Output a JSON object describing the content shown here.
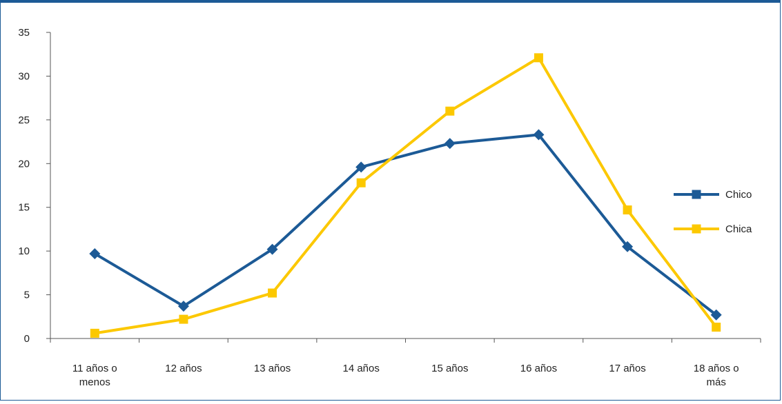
{
  "chart_data": {
    "type": "line",
    "title": "",
    "xlabel": "",
    "ylabel": "",
    "categories": [
      [
        "11 años o",
        "menos"
      ],
      [
        "12 años"
      ],
      [
        "13 años"
      ],
      [
        "14 años"
      ],
      [
        "15 años"
      ],
      [
        "16 años"
      ],
      [
        "17 años"
      ],
      [
        "18 años o",
        "más"
      ]
    ],
    "ylim": [
      0,
      35
    ],
    "yticks": [
      "0",
      "5",
      "10",
      "15",
      "20",
      "25",
      "30",
      "35"
    ],
    "grid": false,
    "legend_position": "right",
    "series": [
      {
        "name": "Chico",
        "color": "#1c5a96",
        "marker": "diamond",
        "values": [
          9.7,
          3.7,
          10.2,
          19.6,
          22.3,
          23.3,
          10.5,
          2.7
        ]
      },
      {
        "name": "Chica",
        "color": "#fcc800",
        "marker": "square",
        "values": [
          0.6,
          2.2,
          5.2,
          17.8,
          26.0,
          32.1,
          14.7,
          1.3
        ]
      }
    ]
  }
}
